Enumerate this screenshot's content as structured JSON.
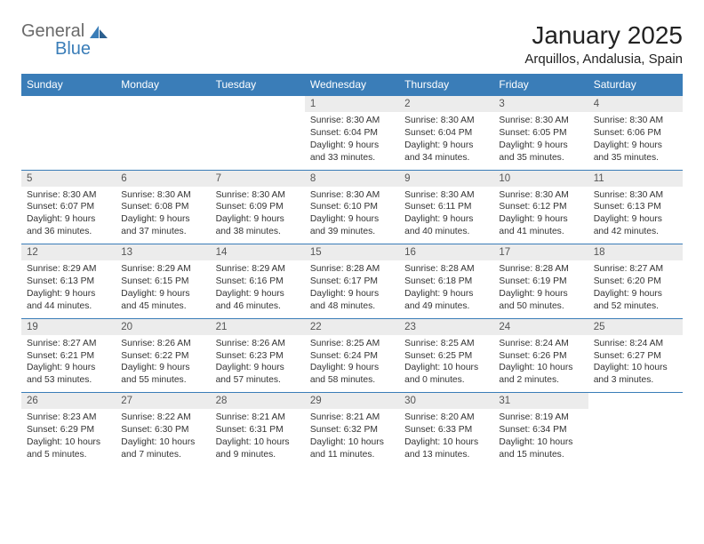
{
  "brand": {
    "text1": "General",
    "text2": "Blue"
  },
  "title": "January 2025",
  "location": "Arquillos, Andalusia, Spain",
  "colors": {
    "header_bg": "#3a7db8",
    "header_text": "#ffffff",
    "daynum_bg": "#ececec",
    "row_border": "#3a7db8",
    "body_text": "#333333",
    "logo_gray": "#6a6a6a",
    "logo_blue": "#3a7db8",
    "page_bg": "#ffffff"
  },
  "day_headers": [
    "Sunday",
    "Monday",
    "Tuesday",
    "Wednesday",
    "Thursday",
    "Friday",
    "Saturday"
  ],
  "weeks": [
    [
      null,
      null,
      null,
      {
        "n": "1",
        "sr": "8:30 AM",
        "ss": "6:04 PM",
        "dl": "9 hours and 33 minutes."
      },
      {
        "n": "2",
        "sr": "8:30 AM",
        "ss": "6:04 PM",
        "dl": "9 hours and 34 minutes."
      },
      {
        "n": "3",
        "sr": "8:30 AM",
        "ss": "6:05 PM",
        "dl": "9 hours and 35 minutes."
      },
      {
        "n": "4",
        "sr": "8:30 AM",
        "ss": "6:06 PM",
        "dl": "9 hours and 35 minutes."
      }
    ],
    [
      {
        "n": "5",
        "sr": "8:30 AM",
        "ss": "6:07 PM",
        "dl": "9 hours and 36 minutes."
      },
      {
        "n": "6",
        "sr": "8:30 AM",
        "ss": "6:08 PM",
        "dl": "9 hours and 37 minutes."
      },
      {
        "n": "7",
        "sr": "8:30 AM",
        "ss": "6:09 PM",
        "dl": "9 hours and 38 minutes."
      },
      {
        "n": "8",
        "sr": "8:30 AM",
        "ss": "6:10 PM",
        "dl": "9 hours and 39 minutes."
      },
      {
        "n": "9",
        "sr": "8:30 AM",
        "ss": "6:11 PM",
        "dl": "9 hours and 40 minutes."
      },
      {
        "n": "10",
        "sr": "8:30 AM",
        "ss": "6:12 PM",
        "dl": "9 hours and 41 minutes."
      },
      {
        "n": "11",
        "sr": "8:30 AM",
        "ss": "6:13 PM",
        "dl": "9 hours and 42 minutes."
      }
    ],
    [
      {
        "n": "12",
        "sr": "8:29 AM",
        "ss": "6:13 PM",
        "dl": "9 hours and 44 minutes."
      },
      {
        "n": "13",
        "sr": "8:29 AM",
        "ss": "6:15 PM",
        "dl": "9 hours and 45 minutes."
      },
      {
        "n": "14",
        "sr": "8:29 AM",
        "ss": "6:16 PM",
        "dl": "9 hours and 46 minutes."
      },
      {
        "n": "15",
        "sr": "8:28 AM",
        "ss": "6:17 PM",
        "dl": "9 hours and 48 minutes."
      },
      {
        "n": "16",
        "sr": "8:28 AM",
        "ss": "6:18 PM",
        "dl": "9 hours and 49 minutes."
      },
      {
        "n": "17",
        "sr": "8:28 AM",
        "ss": "6:19 PM",
        "dl": "9 hours and 50 minutes."
      },
      {
        "n": "18",
        "sr": "8:27 AM",
        "ss": "6:20 PM",
        "dl": "9 hours and 52 minutes."
      }
    ],
    [
      {
        "n": "19",
        "sr": "8:27 AM",
        "ss": "6:21 PM",
        "dl": "9 hours and 53 minutes."
      },
      {
        "n": "20",
        "sr": "8:26 AM",
        "ss": "6:22 PM",
        "dl": "9 hours and 55 minutes."
      },
      {
        "n": "21",
        "sr": "8:26 AM",
        "ss": "6:23 PM",
        "dl": "9 hours and 57 minutes."
      },
      {
        "n": "22",
        "sr": "8:25 AM",
        "ss": "6:24 PM",
        "dl": "9 hours and 58 minutes."
      },
      {
        "n": "23",
        "sr": "8:25 AM",
        "ss": "6:25 PM",
        "dl": "10 hours and 0 minutes."
      },
      {
        "n": "24",
        "sr": "8:24 AM",
        "ss": "6:26 PM",
        "dl": "10 hours and 2 minutes."
      },
      {
        "n": "25",
        "sr": "8:24 AM",
        "ss": "6:27 PM",
        "dl": "10 hours and 3 minutes."
      }
    ],
    [
      {
        "n": "26",
        "sr": "8:23 AM",
        "ss": "6:29 PM",
        "dl": "10 hours and 5 minutes."
      },
      {
        "n": "27",
        "sr": "8:22 AM",
        "ss": "6:30 PM",
        "dl": "10 hours and 7 minutes."
      },
      {
        "n": "28",
        "sr": "8:21 AM",
        "ss": "6:31 PM",
        "dl": "10 hours and 9 minutes."
      },
      {
        "n": "29",
        "sr": "8:21 AM",
        "ss": "6:32 PM",
        "dl": "10 hours and 11 minutes."
      },
      {
        "n": "30",
        "sr": "8:20 AM",
        "ss": "6:33 PM",
        "dl": "10 hours and 13 minutes."
      },
      {
        "n": "31",
        "sr": "8:19 AM",
        "ss": "6:34 PM",
        "dl": "10 hours and 15 minutes."
      },
      null
    ]
  ],
  "labels": {
    "sunrise": "Sunrise:",
    "sunset": "Sunset:",
    "daylight": "Daylight:"
  }
}
